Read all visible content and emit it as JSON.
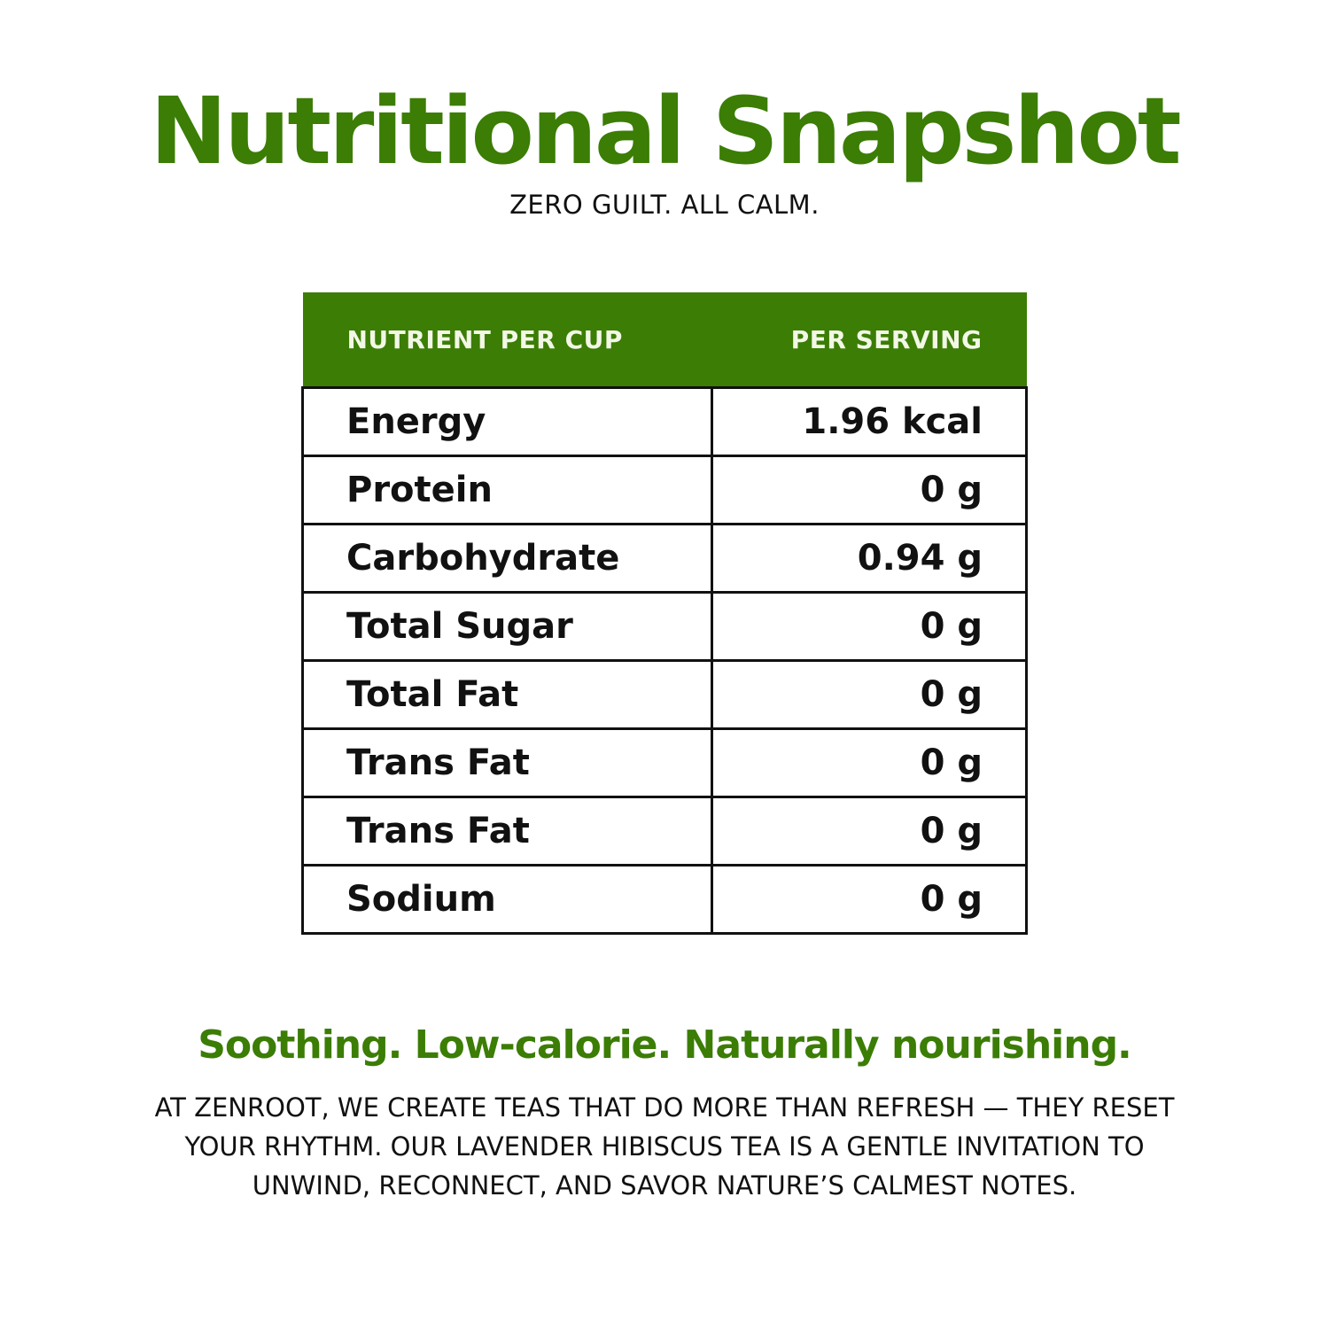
{
  "title": "Nutritional Snapshot",
  "subtitle": "ZERO GUILT. ALL CALM.",
  "colors": {
    "accent": "#3b7d05",
    "header_text": "#f2f7e6"
  },
  "table": {
    "headers": [
      "NUTRIENT PER CUP",
      "PER SERVING"
    ],
    "rows": [
      {
        "nutrient": "Energy",
        "value": "1.96 kcal"
      },
      {
        "nutrient": "Protein",
        "value": "0 g"
      },
      {
        "nutrient": "Carbohydrate",
        "value": "0.94 g"
      },
      {
        "nutrient": "Total Sugar",
        "value": "0 g"
      },
      {
        "nutrient": "Total Fat",
        "value": "0 g"
      },
      {
        "nutrient": "Trans Fat",
        "value": "0 g"
      },
      {
        "nutrient": "Trans Fat",
        "value": "0 g"
      },
      {
        "nutrient": "Sodium",
        "value": "0 g"
      }
    ]
  },
  "tagline": "Soothing. Low-calorie. Naturally nourishing.",
  "description": "AT ZENROOT, WE CREATE TEAS THAT DO MORE THAN REFRESH — THEY RESET YOUR RHYTHM. OUR LAVENDER HIBISCUS TEA IS A GENTLE INVITATION TO UNWIND, RECONNECT, AND SAVOR NATURE’S CALMEST NOTES."
}
